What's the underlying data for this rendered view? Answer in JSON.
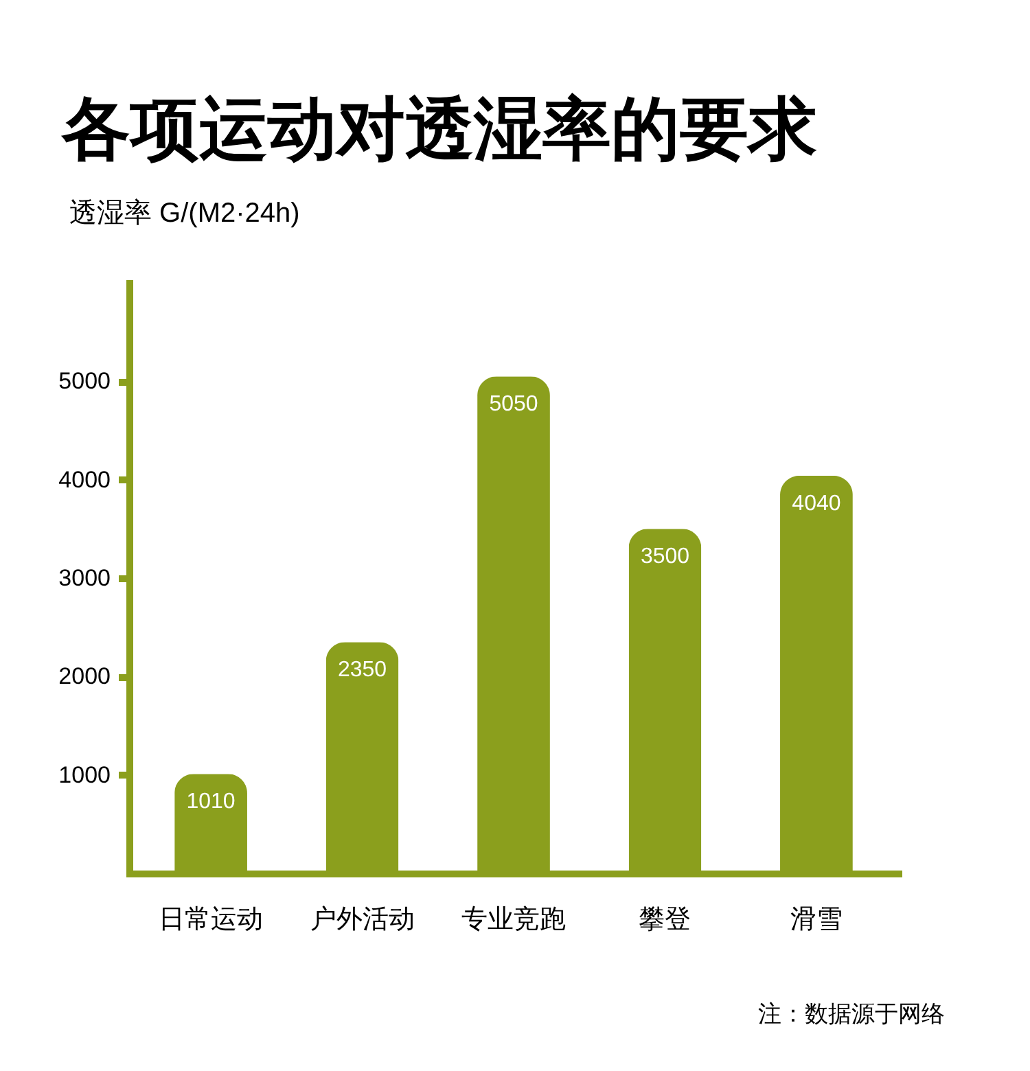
{
  "chart_data": {
    "type": "bar",
    "title": "各项运动对透湿率的要求",
    "ylabel": "透湿率 G/(M2·24h)",
    "categories": [
      "日常运动",
      "户外活动",
      "专业竞跑",
      "攀登",
      "滑雪"
    ],
    "values": [
      1010,
      2350,
      5050,
      3500,
      4040
    ],
    "color": "#8b9f1d",
    "ylim": [
      0,
      6000
    ],
    "yticks": [
      1000,
      2000,
      3000,
      4000,
      5000
    ],
    "grid": false,
    "data_labels": true,
    "annotations": [
      "注：数据源于网络"
    ]
  }
}
